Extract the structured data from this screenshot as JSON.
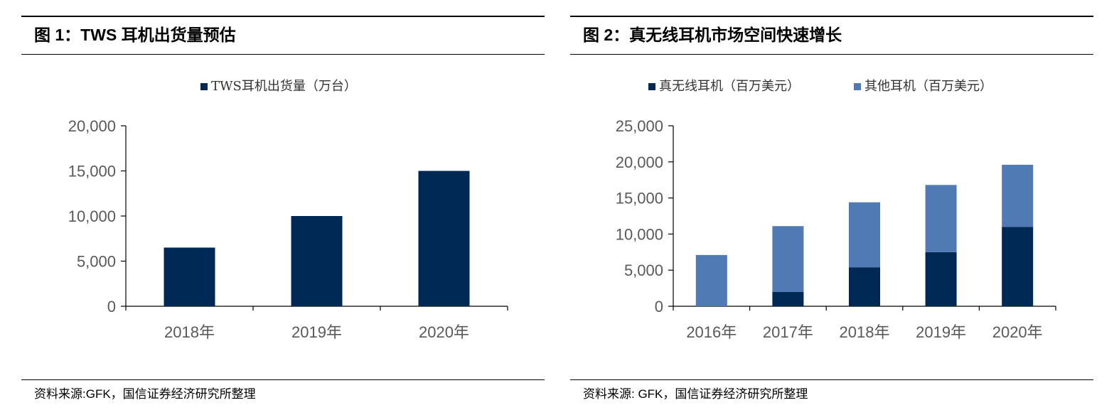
{
  "chart_data": [
    {
      "type": "bar",
      "title": "图 1：TWS 耳机出货量预估",
      "categories": [
        "2018年",
        "2019年",
        "2020年"
      ],
      "series": [
        {
          "name": "TWS耳机出货量（万台）",
          "values": [
            6500,
            10000,
            15000
          ],
          "color": "#002855"
        }
      ],
      "ylim": [
        0,
        20000
      ],
      "yticks": [
        "0",
        "5,000",
        "10,000",
        "15,000",
        "20,000"
      ],
      "ytick_values": [
        0,
        5000,
        10000,
        15000,
        20000
      ],
      "legend_position": "top",
      "grid": false,
      "source": "资料来源:GFK，国信证券经济研究所整理"
    },
    {
      "type": "bar",
      "stacked": true,
      "title": "图 2：真无线耳机市场空间快速增长",
      "categories": [
        "2016年",
        "2017年",
        "2018年",
        "2019年",
        "2020年"
      ],
      "series": [
        {
          "name": "真无线耳机（百万美元）",
          "values": [
            0,
            2000,
            5400,
            7500,
            11000
          ],
          "color": "#002855"
        },
        {
          "name": "其他耳机（百万美元）",
          "values": [
            7100,
            9100,
            9000,
            9300,
            8600
          ],
          "color": "#4f7ab4"
        }
      ],
      "ylim": [
        0,
        25000
      ],
      "yticks": [
        "0",
        "5,000",
        "10,000",
        "15,000",
        "20,000",
        "25,000"
      ],
      "ytick_values": [
        0,
        5000,
        10000,
        15000,
        20000,
        25000
      ],
      "legend_position": "top",
      "grid": false,
      "source": "资料来源: GFK，国信证券经济研究所整理"
    }
  ]
}
